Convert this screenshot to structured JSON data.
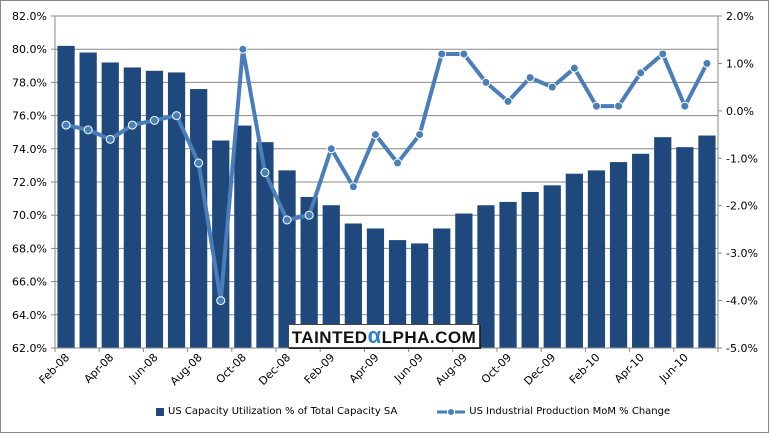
{
  "chart_data": {
    "type": "bar+line",
    "categories": [
      "Feb-08",
      "Mar-08",
      "Apr-08",
      "May-08",
      "Jun-08",
      "Jul-08",
      "Aug-08",
      "Sep-08",
      "Oct-08",
      "Nov-08",
      "Dec-08",
      "Jan-09",
      "Feb-09",
      "Mar-09",
      "Apr-09",
      "May-09",
      "Jun-09",
      "Jul-09",
      "Aug-09",
      "Sep-09",
      "Oct-09",
      "Nov-09",
      "Dec-09",
      "Jan-10",
      "Feb-10",
      "Mar-10",
      "Apr-10",
      "May-10",
      "Jun-10",
      "Jul-10"
    ],
    "x_tick_labels": [
      "Feb-08",
      "Apr-08",
      "Jun-08",
      "Aug-08",
      "Oct-08",
      "Dec-08",
      "Feb-09",
      "Apr-09",
      "Jun-09",
      "Aug-09",
      "Oct-09",
      "Dec-09",
      "Feb-10",
      "Apr-10",
      "Jun-10"
    ],
    "series": [
      {
        "name": "US Capacity Utilization % of Total Capacity SA",
        "type": "bar",
        "axis": "left",
        "color": "#1f497d",
        "values": [
          80.2,
          79.8,
          79.2,
          78.9,
          78.7,
          78.6,
          77.6,
          74.5,
          75.4,
          74.4,
          72.7,
          71.1,
          70.6,
          69.5,
          69.2,
          68.5,
          68.3,
          69.2,
          70.1,
          70.6,
          70.8,
          71.4,
          71.8,
          72.5,
          72.7,
          73.2,
          73.7,
          74.7,
          74.1,
          74.8
        ]
      },
      {
        "name": "US Industrial Production MoM % Change",
        "type": "line",
        "axis": "right",
        "color": "#4a7ebb",
        "values": [
          -0.3,
          -0.4,
          -0.6,
          -0.3,
          -0.2,
          -0.1,
          -1.1,
          -4.0,
          1.3,
          -1.3,
          -2.3,
          -2.2,
          -0.8,
          -1.6,
          -0.5,
          -1.1,
          -0.5,
          1.2,
          1.2,
          0.6,
          0.2,
          0.7,
          0.5,
          0.9,
          0.1,
          0.1,
          0.8,
          1.2,
          0.1,
          1.0
        ]
      }
    ],
    "y_left": {
      "min": 62,
      "max": 82,
      "step": 2,
      "ticks": [
        "62.0%",
        "64.0%",
        "66.0%",
        "68.0%",
        "70.0%",
        "72.0%",
        "74.0%",
        "76.0%",
        "78.0%",
        "80.0%",
        "82.0%"
      ]
    },
    "y_right": {
      "min": -5,
      "max": 2,
      "step": 1,
      "ticks": [
        "-5.0%",
        "-4.0%",
        "-3.0%",
        "-2.0%",
        "-1.0%",
        "0.0%",
        "1.0%",
        "2.0%"
      ]
    },
    "grid": true,
    "legend": "bottom"
  },
  "watermark": {
    "pre": "TAINTED",
    "alpha": "α",
    "post": "LPHA.COM"
  }
}
